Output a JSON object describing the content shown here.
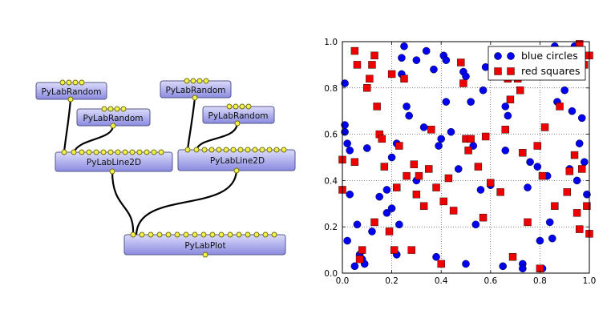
{
  "nodes": [
    {
      "id": "rand1",
      "label": "PyLabRandom"
    },
    {
      "id": "rand2",
      "label": "PyLabRandom"
    },
    {
      "id": "rand3",
      "label": "PyLabRandom"
    },
    {
      "id": "rand4",
      "label": "PyLabRandom"
    },
    {
      "id": "line1",
      "label": "PyLabLine2D"
    },
    {
      "id": "line2",
      "label": "PyLabLine2D"
    },
    {
      "id": "plot",
      "label": "PyLabPlot"
    }
  ],
  "colors": {
    "node_top": "#dcdcfb",
    "node_bottom": "#8a8ae0",
    "port_fill": "#f4f24a",
    "blue_series": "#0000ee",
    "red_series": "#ee0000"
  },
  "chart_data": {
    "type": "scatter",
    "xlim": [
      0,
      1
    ],
    "ylim": [
      0,
      1
    ],
    "x_ticks": [
      "0.0",
      "0.2",
      "0.4",
      "0.6",
      "0.8",
      "1.0"
    ],
    "y_ticks": [
      "0.0",
      "0.2",
      "0.4",
      "0.6",
      "0.8",
      "1.0"
    ],
    "grid": true,
    "legend_position": "top-right",
    "series": [
      {
        "name": "blue circles",
        "marker": "circle",
        "color": "#0000ee",
        "points": [
          [
            0.01,
            0.64
          ],
          [
            0.01,
            0.82
          ],
          [
            0.01,
            0.61
          ],
          [
            0.02,
            0.56
          ],
          [
            0.03,
            0.53
          ],
          [
            0.02,
            0.14
          ],
          [
            0.03,
            0.34
          ],
          [
            0.05,
            0.03
          ],
          [
            0.06,
            0.21
          ],
          [
            0.07,
            0.08
          ],
          [
            0.08,
            0.06
          ],
          [
            0.09,
            0.04
          ],
          [
            0.1,
            0.54
          ],
          [
            0.12,
            0.18
          ],
          [
            0.15,
            0.33
          ],
          [
            0.18,
            0.36
          ],
          [
            0.18,
            0.26
          ],
          [
            0.2,
            0.5
          ],
          [
            0.2,
            0.28
          ],
          [
            0.22,
            0.56
          ],
          [
            0.22,
            0.08
          ],
          [
            0.23,
            0.21
          ],
          [
            0.24,
            0.93
          ],
          [
            0.24,
            0.86
          ],
          [
            0.25,
            0.98
          ],
          [
            0.26,
            0.72
          ],
          [
            0.27,
            0.68
          ],
          [
            0.3,
            0.92
          ],
          [
            0.3,
            0.4
          ],
          [
            0.33,
            0.63
          ],
          [
            0.34,
            0.96
          ],
          [
            0.37,
            0.88
          ],
          [
            0.38,
            0.07
          ],
          [
            0.39,
            0.55
          ],
          [
            0.4,
            0.58
          ],
          [
            0.41,
            0.94
          ],
          [
            0.42,
            0.74
          ],
          [
            0.42,
            0.92
          ],
          [
            0.44,
            0.61
          ],
          [
            0.47,
            0.45
          ],
          [
            0.49,
            0.87
          ],
          [
            0.5,
            0.85
          ],
          [
            0.5,
            0.04
          ],
          [
            0.52,
            0.74
          ],
          [
            0.53,
            0.55
          ],
          [
            0.54,
            0.21
          ],
          [
            0.56,
            0.36
          ],
          [
            0.57,
            0.79
          ],
          [
            0.58,
            0.89
          ],
          [
            0.6,
            0.38
          ],
          [
            0.64,
            0.88
          ],
          [
            0.65,
            0.03
          ],
          [
            0.66,
            0.72
          ],
          [
            0.66,
            0.53
          ],
          [
            0.67,
            0.68
          ],
          [
            0.72,
            0.87
          ],
          [
            0.73,
            0.04
          ],
          [
            0.73,
            0.02
          ],
          [
            0.75,
            0.37
          ],
          [
            0.76,
            0.48
          ],
          [
            0.79,
            0.46
          ],
          [
            0.8,
            0.91
          ],
          [
            0.8,
            0.14
          ],
          [
            0.81,
            0.02
          ],
          [
            0.83,
            0.42
          ],
          [
            0.84,
            0.22
          ],
          [
            0.85,
            0.15
          ],
          [
            0.86,
            0.98
          ],
          [
            0.87,
            0.74
          ],
          [
            0.88,
            0.85
          ],
          [
            0.9,
            0.79
          ],
          [
            0.92,
            0.45
          ],
          [
            0.93,
            0.7
          ],
          [
            0.94,
            0.98
          ],
          [
            0.95,
            0.4
          ],
          [
            0.96,
            0.56
          ],
          [
            0.97,
            0.67
          ],
          [
            0.97,
            0.89
          ],
          [
            0.98,
            0.48
          ],
          [
            0.99,
            0.34
          ]
        ]
      },
      {
        "name": "red squares",
        "marker": "square",
        "color": "#ee0000",
        "points": [
          [
            0.0,
            0.36
          ],
          [
            0.0,
            0.49
          ],
          [
            0.05,
            0.48
          ],
          [
            0.05,
            0.96
          ],
          [
            0.06,
            0.9
          ],
          [
            0.07,
            0.06
          ],
          [
            0.08,
            0.1
          ],
          [
            0.1,
            0.8
          ],
          [
            0.11,
            0.84
          ],
          [
            0.12,
            0.9
          ],
          [
            0.13,
            0.94
          ],
          [
            0.13,
            0.22
          ],
          [
            0.14,
            0.72
          ],
          [
            0.15,
            0.6
          ],
          [
            0.16,
            0.58
          ],
          [
            0.17,
            0.46
          ],
          [
            0.19,
            0.18
          ],
          [
            0.2,
            0.86
          ],
          [
            0.21,
            0.1
          ],
          [
            0.22,
            0.37
          ],
          [
            0.23,
            0.55
          ],
          [
            0.25,
            0.84
          ],
          [
            0.26,
            0.42
          ],
          [
            0.28,
            0.1
          ],
          [
            0.29,
            0.47
          ],
          [
            0.3,
            0.34
          ],
          [
            0.31,
            0.42
          ],
          [
            0.33,
            0.29
          ],
          [
            0.35,
            0.45
          ],
          [
            0.36,
            0.62
          ],
          [
            0.38,
            0.37
          ],
          [
            0.4,
            0.04
          ],
          [
            0.41,
            0.31
          ],
          [
            0.43,
            0.41
          ],
          [
            0.45,
            0.27
          ],
          [
            0.48,
            0.91
          ],
          [
            0.49,
            0.82
          ],
          [
            0.5,
            0.58
          ],
          [
            0.51,
            0.53
          ],
          [
            0.52,
            0.58
          ],
          [
            0.55,
            0.46
          ],
          [
            0.57,
            0.24
          ],
          [
            0.58,
            0.59
          ],
          [
            0.6,
            0.39
          ],
          [
            0.62,
            0.94
          ],
          [
            0.64,
            0.35
          ],
          [
            0.66,
            0.62
          ],
          [
            0.67,
            0.84
          ],
          [
            0.68,
            0.75
          ],
          [
            0.69,
            0.07
          ],
          [
            0.71,
            0.84
          ],
          [
            0.72,
            0.79
          ],
          [
            0.73,
            0.52
          ],
          [
            0.75,
            0.22
          ],
          [
            0.77,
            0.87
          ],
          [
            0.79,
            0.55
          ],
          [
            0.8,
            0.02
          ],
          [
            0.81,
            0.42
          ],
          [
            0.82,
            0.63
          ],
          [
            0.86,
            0.29
          ],
          [
            0.87,
            0.85
          ],
          [
            0.88,
            0.72
          ],
          [
            0.9,
            0.88
          ],
          [
            0.91,
            0.35
          ],
          [
            0.92,
            0.44
          ],
          [
            0.94,
            0.51
          ],
          [
            0.95,
            0.26
          ],
          [
            0.96,
            0.99
          ],
          [
            0.96,
            0.19
          ],
          [
            0.97,
            0.45
          ],
          [
            0.98,
            0.9
          ],
          [
            0.99,
            0.29
          ],
          [
            1.0,
            0.94
          ],
          [
            1.0,
            0.17
          ]
        ]
      }
    ]
  }
}
